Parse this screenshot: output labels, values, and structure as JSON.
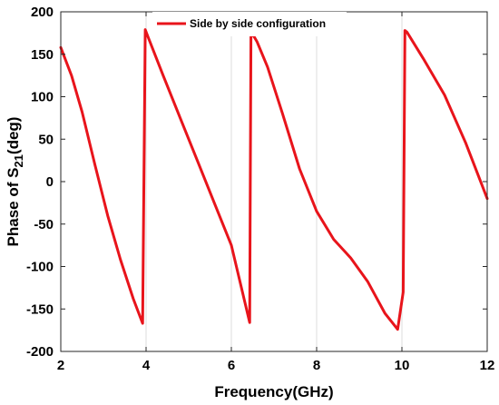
{
  "chart_data": {
    "type": "line",
    "xlabel": "Frequency(GHz)",
    "ylabel": {
      "main": "Phase of S",
      "sub": "21",
      "tail": "(deg)"
    },
    "xlim": [
      2,
      12
    ],
    "ylim": [
      -200,
      200
    ],
    "xticks": [
      2,
      4,
      6,
      8,
      10,
      12
    ],
    "yticks": [
      -200,
      -150,
      -100,
      -50,
      0,
      50,
      100,
      150,
      200
    ],
    "grid": true,
    "legend_position": "top-center",
    "series": [
      {
        "name": "Side by side configuration",
        "color": "#e8141b",
        "x": [
          2.0,
          2.25,
          2.5,
          2.8,
          3.1,
          3.4,
          3.7,
          3.92,
          3.98,
          4.05,
          4.4,
          4.8,
          5.2,
          5.6,
          6.0,
          6.43,
          6.46,
          6.52,
          6.6,
          6.85,
          7.2,
          7.6,
          8.0,
          8.4,
          8.8,
          9.2,
          9.6,
          9.9,
          10.03,
          10.07,
          10.12,
          10.5,
          11.0,
          11.5,
          12.0
        ],
        "y": [
          158,
          125,
          82,
          20,
          -40,
          -92,
          -138,
          -167,
          179,
          170,
          125,
          75,
          25,
          -25,
          -75,
          -166,
          172,
          172,
          165,
          135,
          80,
          15,
          -35,
          -68,
          -90,
          -118,
          -155,
          -174,
          -130,
          178,
          176,
          145,
          102,
          45,
          -20
        ]
      }
    ]
  }
}
